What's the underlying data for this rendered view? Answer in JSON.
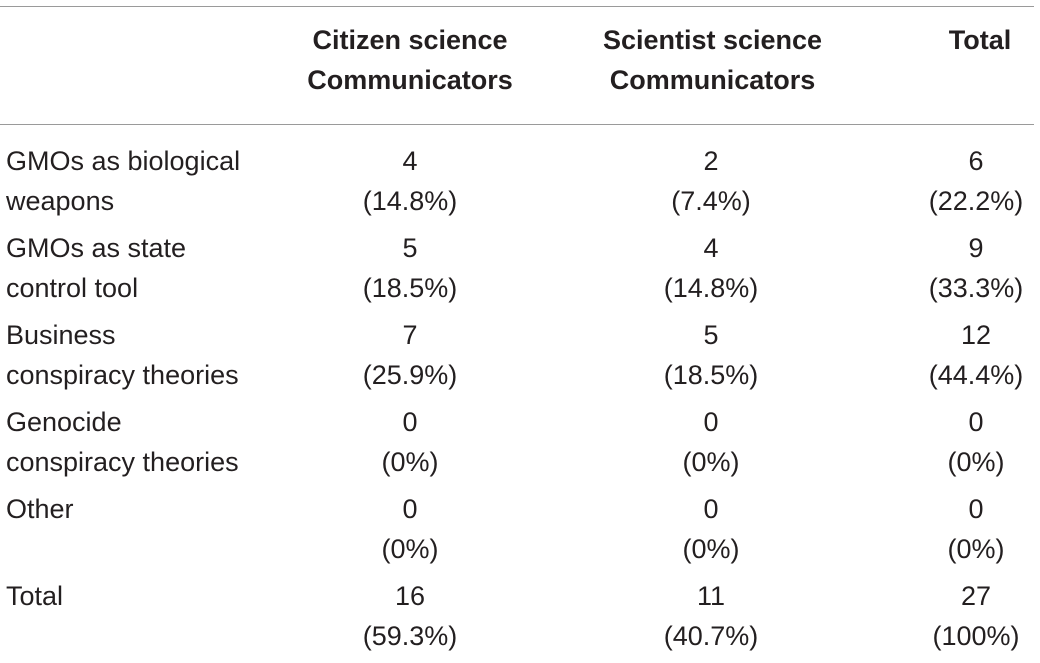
{
  "table": {
    "headers": {
      "col1_line1": "Citizen science",
      "col1_line2": "Communicators",
      "col2_line1": "Scientist science",
      "col2_line2": "Communicators",
      "col3": "Total"
    },
    "rows": [
      {
        "label_line1": "GMOs as biological",
        "label_line2": "weapons",
        "citizen_count": "4",
        "citizen_pct": "(14.8%)",
        "scientist_count": "2",
        "scientist_pct": "(7.4%)",
        "total_count": "6",
        "total_pct": "(22.2%)"
      },
      {
        "label_line1": "GMOs as state",
        "label_line2": "control tool",
        "citizen_count": "5",
        "citizen_pct": "(18.5%)",
        "scientist_count": "4",
        "scientist_pct": "(14.8%)",
        "total_count": "9",
        "total_pct": "(33.3%)"
      },
      {
        "label_line1": "Business",
        "label_line2": "conspiracy theories",
        "citizen_count": "7",
        "citizen_pct": "(25.9%)",
        "scientist_count": "5",
        "scientist_pct": "(18.5%)",
        "total_count": "12",
        "total_pct": "(44.4%)"
      },
      {
        "label_line1": "Genocide",
        "label_line2": "conspiracy theories",
        "citizen_count": "0",
        "citizen_pct": "(0%)",
        "scientist_count": "0",
        "scientist_pct": "(0%)",
        "total_count": "0",
        "total_pct": "(0%)"
      },
      {
        "label_line1": "Other",
        "label_line2": "",
        "citizen_count": "0",
        "citizen_pct": "(0%)",
        "scientist_count": "0",
        "scientist_pct": "(0%)",
        "total_count": "0",
        "total_pct": "(0%)"
      },
      {
        "label_line1": "Total",
        "label_line2": "",
        "citizen_count": "16",
        "citizen_pct": "(59.3%)",
        "scientist_count": "11",
        "scientist_pct": "(40.7%)",
        "total_count": "27",
        "total_pct": "(100%)"
      }
    ]
  }
}
